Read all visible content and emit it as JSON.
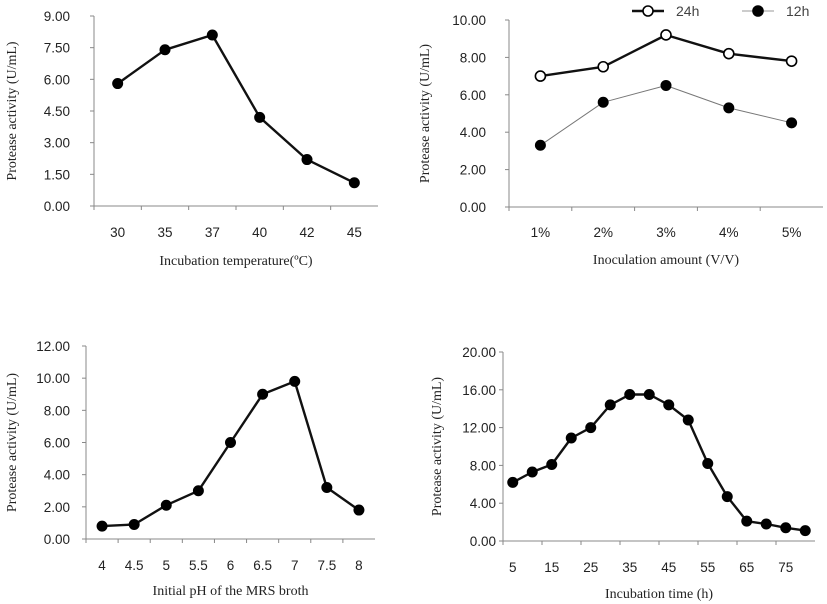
{
  "chart_data": [
    {
      "type": "line",
      "title": "",
      "xlabel": "Incubation temperature(ºC)",
      "ylabel": "Protease activity (U/mL)",
      "categories": [
        "30",
        "35",
        "37",
        "40",
        "42",
        "45"
      ],
      "y_ticks": [
        "0.00",
        "1.50",
        "3.00",
        "4.50",
        "6.00",
        "7.50",
        "9.00"
      ],
      "ylim": [
        0,
        9
      ],
      "series": [
        {
          "values": [
            5.8,
            7.4,
            8.1,
            4.2,
            2.2,
            1.1
          ],
          "marker": "filled",
          "line": "thick"
        }
      ]
    },
    {
      "type": "line",
      "title": "",
      "xlabel": "Inoculation amount (V/V)",
      "ylabel": "Protease activity (U/mL)",
      "categories": [
        "1%",
        "2%",
        "3%",
        "4%",
        "5%"
      ],
      "y_ticks": [
        "0.00",
        "2.00",
        "4.00",
        "6.00",
        "8.00",
        "10.00"
      ],
      "ylim": [
        0,
        10
      ],
      "legend": "top-right",
      "series": [
        {
          "name": "24h",
          "values": [
            7.0,
            7.5,
            9.2,
            8.2,
            7.8
          ],
          "marker": "open",
          "line": "thick"
        },
        {
          "name": "12h",
          "values": [
            3.3,
            5.6,
            6.5,
            5.3,
            4.5
          ],
          "marker": "filled",
          "line": "thin"
        }
      ]
    },
    {
      "type": "line",
      "title": "",
      "xlabel": "Initial pH of the MRS broth",
      "ylabel": "Protease activity (U/mL)",
      "categories": [
        "4",
        "4.5",
        "5",
        "5.5",
        "6",
        "6.5",
        "7",
        "7.5",
        "8"
      ],
      "y_ticks": [
        "0.00",
        "2.00",
        "4.00",
        "6.00",
        "8.00",
        "10.00",
        "12.00"
      ],
      "ylim": [
        0,
        12
      ],
      "series": [
        {
          "values": [
            0.8,
            0.9,
            2.1,
            3.0,
            6.0,
            9.0,
            9.8,
            3.2,
            1.8
          ],
          "marker": "filled",
          "line": "thick"
        }
      ]
    },
    {
      "type": "line",
      "title": "",
      "xlabel": "Incubation time (h)",
      "ylabel": "Protease activity (U/mL)",
      "categories": [
        "5",
        "10",
        "15",
        "20",
        "25",
        "30",
        "35",
        "40",
        "45",
        "50",
        "55",
        "60",
        "65",
        "70",
        "75",
        "80"
      ],
      "tick_labels": [
        "5",
        "15",
        "25",
        "35",
        "45",
        "55",
        "65",
        "75"
      ],
      "y_ticks": [
        "0.00",
        "4.00",
        "8.00",
        "12.00",
        "16.00",
        "20.00"
      ],
      "ylim": [
        0,
        20
      ],
      "series": [
        {
          "values": [
            6.2,
            7.3,
            8.1,
            10.9,
            12.0,
            14.4,
            15.5,
            15.5,
            14.4,
            12.8,
            8.2,
            4.7,
            2.1,
            1.8,
            1.4,
            1.1
          ],
          "marker": "filled",
          "line": "thick"
        }
      ]
    }
  ]
}
